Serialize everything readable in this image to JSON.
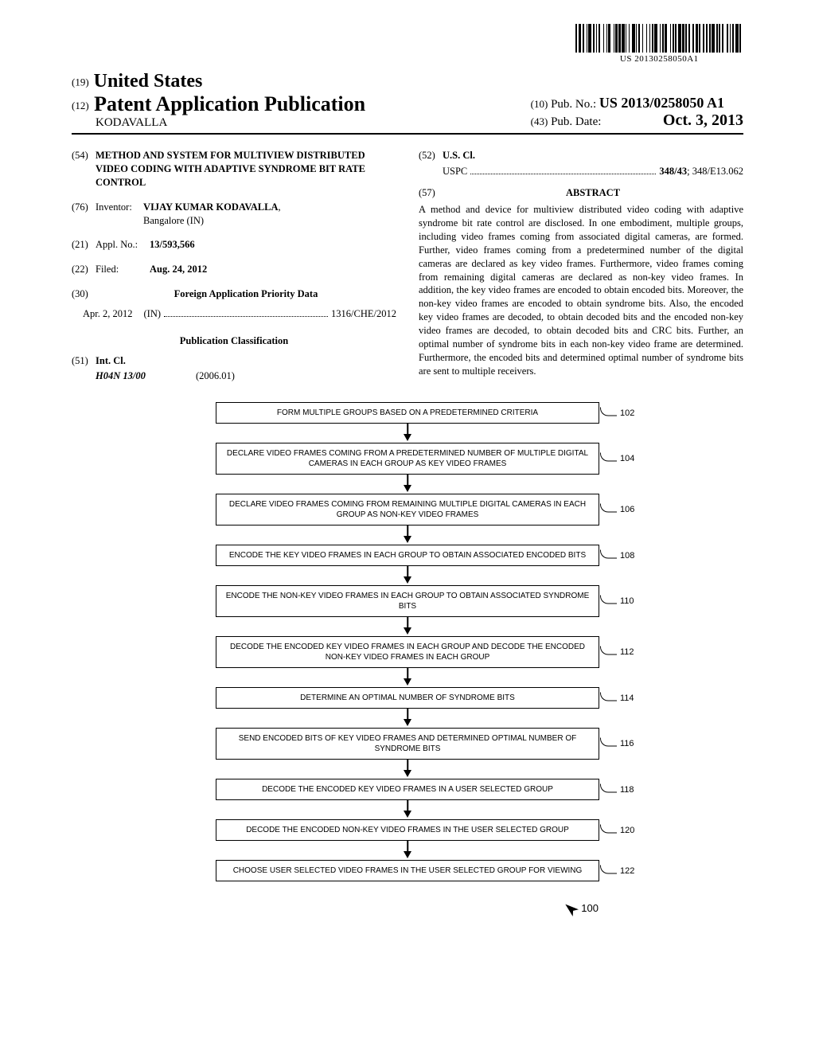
{
  "barcode_text": "US 20130258050A1",
  "header": {
    "country_code": "(19)",
    "country": "United States",
    "doc_type_code": "(12)",
    "doc_type": "Patent Application Publication",
    "author": "KODAVALLA",
    "pubno_code": "(10)",
    "pubno_label": "Pub. No.:",
    "pubno": "US 2013/0258050 A1",
    "pubdate_code": "(43)",
    "pubdate_label": "Pub. Date:",
    "pubdate": "Oct. 3, 2013"
  },
  "fields": {
    "title_code": "(54)",
    "title": "METHOD AND SYSTEM FOR MULTIVIEW DISTRIBUTED VIDEO CODING WITH ADAPTIVE SYNDROME BIT RATE CONTROL",
    "inventor_code": "(76)",
    "inventor_label": "Inventor:",
    "inventor_name": "VIJAY KUMAR KODAVALLA",
    "inventor_loc": "Bangalore (IN)",
    "applno_code": "(21)",
    "applno_label": "Appl. No.:",
    "applno": "13/593,566",
    "filed_code": "(22)",
    "filed_label": "Filed:",
    "filed": "Aug. 24, 2012",
    "foreign_code": "(30)",
    "foreign_label": "Foreign Application Priority Data",
    "foreign_date": "Apr. 2, 2012",
    "foreign_country": "(IN)",
    "foreign_num": "1316/CHE/2012",
    "pubclass_heading": "Publication Classification",
    "intcl_code": "(51)",
    "intcl_label": "Int. Cl.",
    "intcl_value": "H04N 13/00",
    "intcl_year": "(2006.01)",
    "uscl_code": "(52)",
    "uscl_label": "U.S. Cl.",
    "uscl_prefix": "USPC",
    "uscl_main": "348/43",
    "uscl_rest": "; 348/E13.062"
  },
  "abstract": {
    "code": "(57)",
    "heading": "ABSTRACT",
    "text": "A method and device for multiview distributed video coding with adaptive syndrome bit rate control are disclosed. In one embodiment, multiple groups, including video frames coming from associated digital cameras, are formed. Further, video frames coming from a predetermined number of the digital cameras are declared as key video frames. Furthermore, video frames coming from remaining digital cameras are declared as non-key video frames. In addition, the key video frames are encoded to obtain encoded bits. Moreover, the non-key video frames are encoded to obtain syndrome bits. Also, the encoded key video frames are decoded, to obtain decoded bits and the encoded non-key video frames are decoded, to obtain decoded bits and CRC bits. Further, an optimal number of syndrome bits in each non-key video frame are determined. Furthermore, the encoded bits and determined optimal number of syndrome bits are sent to multiple receivers."
  },
  "flowchart": {
    "steps": [
      {
        "text": "FORM MULTIPLE GROUPS BASED ON A PREDETERMINED CRITERIA",
        "label": "102"
      },
      {
        "text": "DECLARE VIDEO FRAMES COMING FROM A PREDETERMINED NUMBER OF MULTIPLE DIGITAL CAMERAS IN EACH GROUP AS KEY VIDEO FRAMES",
        "label": "104"
      },
      {
        "text": "DECLARE VIDEO FRAMES COMING FROM REMAINING MULTIPLE DIGITAL CAMERAS IN EACH GROUP AS NON-KEY VIDEO FRAMES",
        "label": "106"
      },
      {
        "text": "ENCODE THE KEY VIDEO FRAMES IN EACH GROUP TO OBTAIN ASSOCIATED ENCODED BITS",
        "label": "108"
      },
      {
        "text": "ENCODE THE NON-KEY VIDEO FRAMES IN EACH GROUP TO OBTAIN ASSOCIATED SYNDROME BITS",
        "label": "110"
      },
      {
        "text": "DECODE THE ENCODED KEY VIDEO FRAMES IN EACH GROUP AND DECODE THE ENCODED NON-KEY VIDEO FRAMES IN EACH GROUP",
        "label": "112"
      },
      {
        "text": "DETERMINE AN OPTIMAL NUMBER OF SYNDROME BITS",
        "label": "114"
      },
      {
        "text": "SEND ENCODED BITS OF KEY VIDEO FRAMES AND DETERMINED OPTIMAL NUMBER OF SYNDROME BITS",
        "label": "116"
      },
      {
        "text": "DECODE THE ENCODED KEY VIDEO FRAMES IN A USER SELECTED GROUP",
        "label": "118"
      },
      {
        "text": "DECODE THE ENCODED NON-KEY VIDEO FRAMES IN THE USER SELECTED GROUP",
        "label": "120"
      },
      {
        "text": "CHOOSE USER SELECTED VIDEO FRAMES IN THE USER SELECTED GROUP FOR VIEWING",
        "label": "122"
      }
    ],
    "figure_label": "100"
  },
  "barcode_widths": [
    2,
    1,
    3,
    1,
    2,
    2,
    1,
    1,
    3,
    1,
    2,
    1,
    1,
    2,
    1,
    3,
    1,
    2,
    1,
    1,
    2,
    3,
    1,
    1,
    2,
    1,
    2,
    1,
    3,
    1,
    1,
    2,
    1,
    2,
    3,
    1,
    1,
    1,
    2,
    2,
    1,
    3,
    1,
    2,
    1,
    1,
    2,
    1,
    3,
    2,
    1,
    1,
    2,
    1,
    2,
    3,
    1,
    1,
    2,
    1,
    1,
    2,
    3,
    1,
    2,
    1,
    1,
    2,
    1,
    3,
    1,
    2,
    2,
    1,
    1,
    3,
    1,
    2,
    1,
    2,
    1,
    1,
    3,
    2,
    1,
    1,
    2,
    1,
    2,
    3,
    1,
    2,
    1,
    1,
    2,
    1,
    3,
    1,
    2,
    2
  ]
}
